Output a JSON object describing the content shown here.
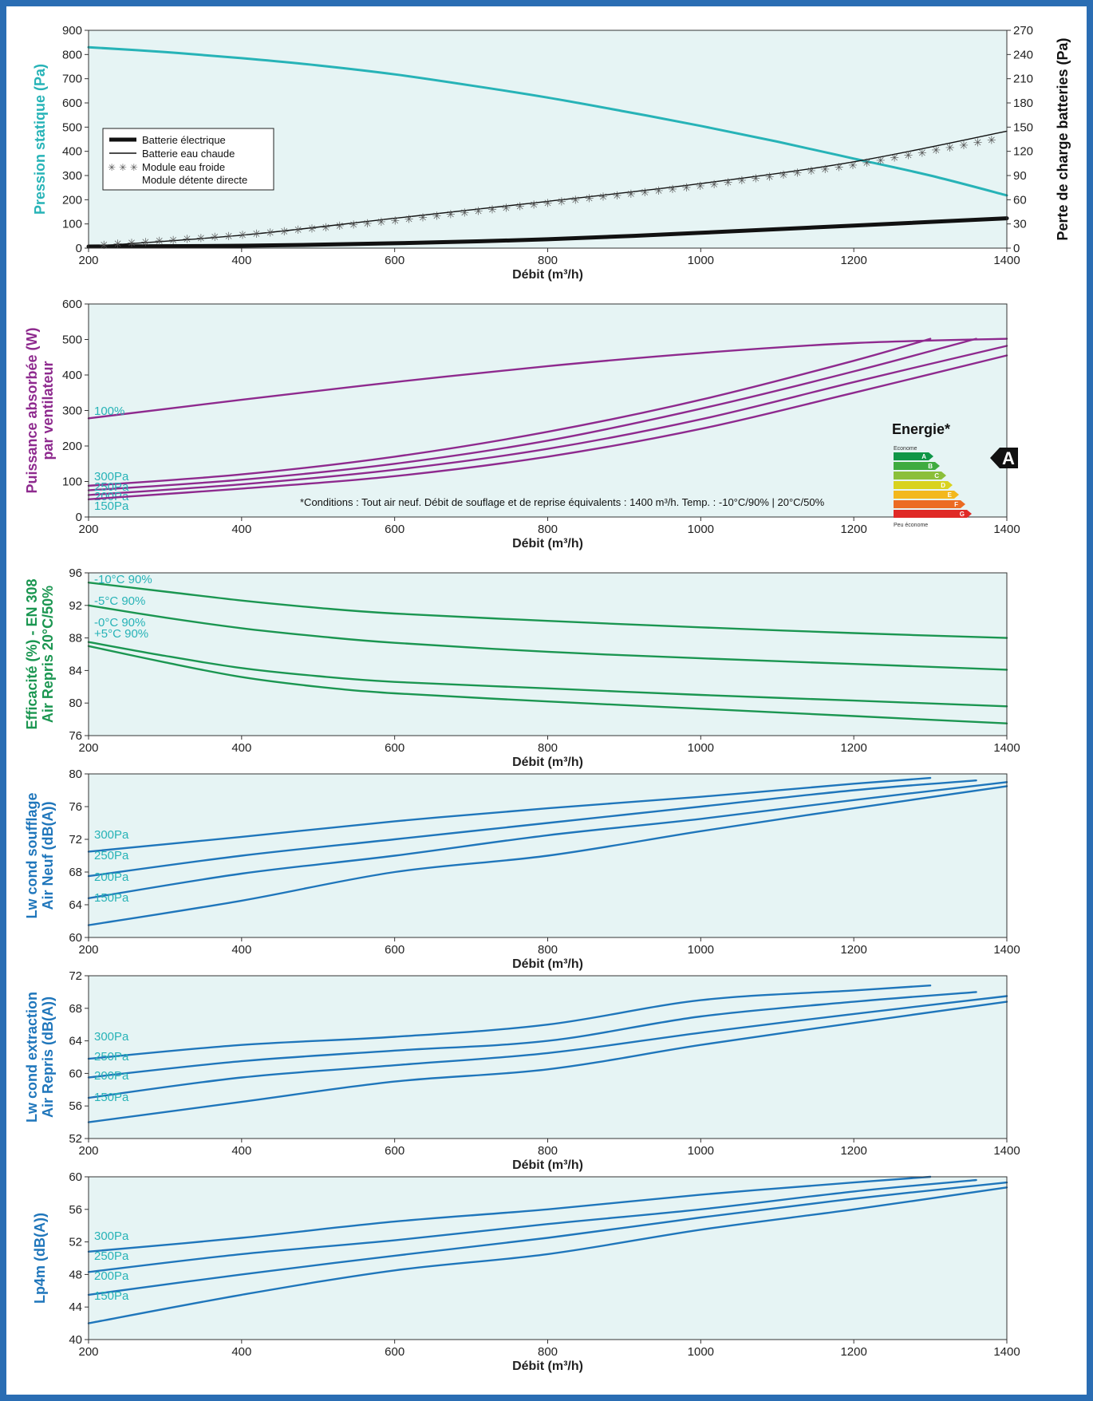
{
  "chart_data": [
    {
      "type": "line",
      "xlabel": "Débit (m³/h)",
      "ylabel": "Pression statique (Pa)",
      "ylabel_right": "Perte de charge batteries (Pa)",
      "xlim": [
        200,
        1400
      ],
      "ylim": [
        0,
        900
      ],
      "ylim_right": [
        0,
        270
      ],
      "x_ticks": [
        200,
        400,
        600,
        800,
        1000,
        1200,
        1400
      ],
      "y_ticks": [
        0,
        100,
        200,
        300,
        400,
        500,
        600,
        700,
        800,
        900
      ],
      "y_ticks_right": [
        0,
        30,
        60,
        90,
        120,
        150,
        180,
        210,
        240,
        270
      ],
      "legend_position": "left",
      "legend": [
        "Batterie électrique",
        "Batterie eau chaude",
        "Module eau froide",
        "Module détente directe"
      ],
      "legend_marker_module": "✳ ✳ ✳",
      "series": [
        {
          "key": "static",
          "axis": "left",
          "color": "#27b3b7",
          "width": 3,
          "x": [
            200,
            300,
            400,
            500,
            600,
            700,
            800,
            900,
            1000,
            1100,
            1200,
            1300,
            1400
          ],
          "y": [
            830,
            810,
            785,
            755,
            718,
            672,
            622,
            565,
            505,
            440,
            370,
            300,
            218
          ]
        },
        {
          "name": "Batterie électrique",
          "axis": "right",
          "color": "#111111",
          "width": 5,
          "x": [
            200,
            400,
            600,
            800,
            1000,
            1200,
            1400
          ],
          "y": [
            2,
            3,
            6,
            11,
            19,
            28,
            37
          ]
        },
        {
          "name": "Batterie eau chaude",
          "axis": "right",
          "color": "#111111",
          "width": 1.4,
          "x": [
            200,
            400,
            600,
            800,
            1000,
            1200,
            1400
          ],
          "y": [
            2,
            16,
            37,
            58,
            80,
            107,
            145
          ]
        },
        {
          "name": "Module eau froide",
          "axis": "right",
          "color": "#555555",
          "marker": "✳",
          "x": [
            220,
            400,
            600,
            800,
            1000,
            1200,
            1380
          ],
          "y": [
            4,
            16,
            34,
            56,
            77,
            103,
            134
          ]
        }
      ]
    },
    {
      "type": "line",
      "xlabel": "Débit (m³/h)",
      "ylabel": [
        "Puissance absorbée (W)",
        "par ventilateur"
      ],
      "xlim": [
        200,
        1400
      ],
      "ylim": [
        0,
        600
      ],
      "x_ticks": [
        200,
        400,
        600,
        800,
        1000,
        1200,
        1400
      ],
      "y_ticks": [
        0,
        100,
        200,
        300,
        400,
        500,
        600
      ],
      "note": "*Conditions : Tout air neuf. Débit de souflage et de reprise équivalents : 1400 m³/h. Temp. : -10°C/90% | 20°C/50%",
      "energy": {
        "title": "Energie*",
        "top_label": "Econome",
        "bottom_label": "Peu économe",
        "classes": [
          "A",
          "B",
          "C",
          "D",
          "E",
          "F",
          "G"
        ],
        "class_colors": [
          "#0f9647",
          "#3fab40",
          "#8bbf3a",
          "#d9d21e",
          "#f3b81d",
          "#ec6b23",
          "#e02a26"
        ],
        "rating": "A"
      },
      "series": [
        {
          "name": "100%",
          "color": "#8e2a8e",
          "x": [
            200,
            400,
            600,
            800,
            1000,
            1200,
            1400
          ],
          "y": [
            278,
            330,
            380,
            425,
            462,
            490,
            502
          ]
        },
        {
          "name": "300Pa",
          "color": "#8e2a8e",
          "x": [
            200,
            400,
            600,
            800,
            1000,
            1200,
            1300
          ],
          "y": [
            88,
            120,
            170,
            240,
            330,
            440,
            502
          ]
        },
        {
          "name": "250Pa",
          "color": "#8e2a8e",
          "x": [
            200,
            400,
            600,
            800,
            1000,
            1200,
            1360
          ],
          "y": [
            75,
            105,
            150,
            215,
            305,
            410,
            502
          ]
        },
        {
          "name": "200Pa",
          "color": "#8e2a8e",
          "x": [
            200,
            400,
            600,
            800,
            1000,
            1200,
            1400
          ],
          "y": [
            62,
            92,
            133,
            192,
            275,
            380,
            482
          ]
        },
        {
          "name": "150Pa",
          "color": "#8e2a8e",
          "x": [
            200,
            400,
            600,
            800,
            1000,
            1200,
            1400
          ],
          "y": [
            50,
            80,
            115,
            170,
            248,
            350,
            455
          ]
        }
      ]
    },
    {
      "type": "line",
      "xlabel": "Débit (m³/h)",
      "ylabel": [
        "Efficacité (%) - EN 308",
        "Air Repris 20°C/50%"
      ],
      "xlim": [
        200,
        1400
      ],
      "ylim": [
        76,
        96
      ],
      "x_ticks": [
        200,
        400,
        600,
        800,
        1000,
        1200,
        1400
      ],
      "y_ticks": [
        76,
        80,
        84,
        88,
        92,
        96
      ],
      "series": [
        {
          "name": "-10°C 90%",
          "color": "#1b9651",
          "x": [
            200,
            300,
            400,
            500,
            600,
            800,
            1000,
            1200,
            1400
          ],
          "y": [
            94.8,
            93.7,
            92.6,
            91.7,
            91.0,
            90.1,
            89.3,
            88.6,
            88.0
          ]
        },
        {
          "name": "-5°C 90%",
          "color": "#1b9651",
          "x": [
            200,
            300,
            400,
            500,
            600,
            800,
            1000,
            1200,
            1400
          ],
          "y": [
            92.0,
            90.5,
            89.2,
            88.2,
            87.4,
            86.3,
            85.5,
            84.8,
            84.1
          ]
        },
        {
          "name": "-0°C 90%",
          "color": "#1b9651",
          "x": [
            200,
            300,
            400,
            500,
            600,
            800,
            1000,
            1200,
            1400
          ],
          "y": [
            87.5,
            85.8,
            84.3,
            83.3,
            82.6,
            81.8,
            81.0,
            80.3,
            79.6
          ]
        },
        {
          "name": "+5°C 90%",
          "color": "#1b9651",
          "x": [
            200,
            300,
            400,
            500,
            600,
            800,
            1000,
            1200,
            1400
          ],
          "y": [
            87.0,
            85.0,
            83.2,
            82.0,
            81.2,
            80.2,
            79.3,
            78.4,
            77.5
          ]
        }
      ]
    },
    {
      "type": "line",
      "xlabel": "Débit (m³/h)",
      "ylabel": [
        "Lw cond soufflage",
        "Air Neuf (dB(A))"
      ],
      "xlim": [
        200,
        1400
      ],
      "ylim": [
        60,
        80
      ],
      "x_ticks": [
        200,
        400,
        600,
        800,
        1000,
        1200,
        1400
      ],
      "y_ticks": [
        60,
        64,
        68,
        72,
        76,
        80
      ],
      "series": [
        {
          "name": "300Pa",
          "color": "#1f76bb",
          "x": [
            200,
            400,
            600,
            800,
            1000,
            1200,
            1300
          ],
          "y": [
            70.5,
            72.3,
            74.2,
            75.8,
            77.2,
            78.8,
            79.5
          ]
        },
        {
          "name": "250Pa",
          "color": "#1f76bb",
          "x": [
            200,
            400,
            600,
            800,
            1000,
            1200,
            1360
          ],
          "y": [
            67.5,
            70.0,
            72.0,
            74.0,
            76.0,
            78.0,
            79.2
          ]
        },
        {
          "name": "200Pa",
          "color": "#1f76bb",
          "x": [
            200,
            400,
            600,
            800,
            1000,
            1200,
            1400
          ],
          "y": [
            64.8,
            67.8,
            70.0,
            72.5,
            74.5,
            76.8,
            79.0
          ]
        },
        {
          "name": "150Pa",
          "color": "#1f76bb",
          "x": [
            200,
            400,
            600,
            800,
            1000,
            1200,
            1400
          ],
          "y": [
            61.5,
            64.5,
            68.0,
            70.0,
            73.0,
            75.8,
            78.5
          ]
        }
      ]
    },
    {
      "type": "line",
      "xlabel": "Débit (m³/h)",
      "ylabel": [
        "Lw cond extraction",
        "Air Repris (dB(A))"
      ],
      "xlim": [
        200,
        1400
      ],
      "ylim": [
        52,
        72
      ],
      "x_ticks": [
        200,
        400,
        600,
        800,
        1000,
        1200,
        1400
      ],
      "y_ticks": [
        52,
        56,
        60,
        64,
        68,
        72
      ],
      "series": [
        {
          "name": "300Pa",
          "color": "#1f76bb",
          "x": [
            200,
            400,
            600,
            800,
            1000,
            1200,
            1300
          ],
          "y": [
            61.8,
            63.5,
            64.5,
            66.0,
            69.0,
            70.2,
            70.8
          ]
        },
        {
          "name": "250Pa",
          "color": "#1f76bb",
          "x": [
            200,
            400,
            600,
            800,
            1000,
            1200,
            1360
          ],
          "y": [
            59.5,
            61.5,
            62.8,
            64.0,
            67.0,
            68.8,
            70.0
          ]
        },
        {
          "name": "200Pa",
          "color": "#1f76bb",
          "x": [
            200,
            400,
            600,
            800,
            1000,
            1200,
            1400
          ],
          "y": [
            57.0,
            59.5,
            61.0,
            62.5,
            65.0,
            67.3,
            69.5
          ]
        },
        {
          "name": "150Pa",
          "color": "#1f76bb",
          "x": [
            200,
            400,
            600,
            800,
            1000,
            1200,
            1400
          ],
          "y": [
            54.0,
            56.5,
            59.0,
            60.5,
            63.5,
            66.2,
            68.8
          ]
        }
      ]
    },
    {
      "type": "line",
      "xlabel": "Débit (m³/h)",
      "ylabel": "Lp4m (dB(A))",
      "xlim": [
        200,
        1400
      ],
      "ylim": [
        40,
        60
      ],
      "x_ticks": [
        200,
        400,
        600,
        800,
        1000,
        1200,
        1400
      ],
      "y_ticks": [
        40,
        44,
        48,
        52,
        56,
        60
      ],
      "series": [
        {
          "name": "300Pa",
          "color": "#1f76bb",
          "x": [
            200,
            400,
            600,
            800,
            1000,
            1200,
            1300
          ],
          "y": [
            50.8,
            52.5,
            54.5,
            56.0,
            57.8,
            59.3,
            60.0
          ]
        },
        {
          "name": "250Pa",
          "color": "#1f76bb",
          "x": [
            200,
            400,
            600,
            800,
            1000,
            1200,
            1360
          ],
          "y": [
            48.3,
            50.5,
            52.2,
            54.2,
            56.0,
            58.2,
            59.6
          ]
        },
        {
          "name": "200Pa",
          "color": "#1f76bb",
          "x": [
            200,
            400,
            600,
            800,
            1000,
            1200,
            1400
          ],
          "y": [
            45.5,
            48.0,
            50.3,
            52.5,
            55.0,
            57.3,
            59.3
          ]
        },
        {
          "name": "150Pa",
          "color": "#1f76bb",
          "x": [
            200,
            400,
            600,
            800,
            1000,
            1200,
            1400
          ],
          "y": [
            42.0,
            45.5,
            48.5,
            50.5,
            53.5,
            56.0,
            58.7
          ]
        }
      ]
    }
  ],
  "colors": {
    "plot_bg": "#e6f4f4",
    "frame": "#333333",
    "cyan_label": "#27b3b7",
    "purple": "#8e2a8e",
    "green": "#1b9651",
    "blue": "#1f76bb"
  }
}
